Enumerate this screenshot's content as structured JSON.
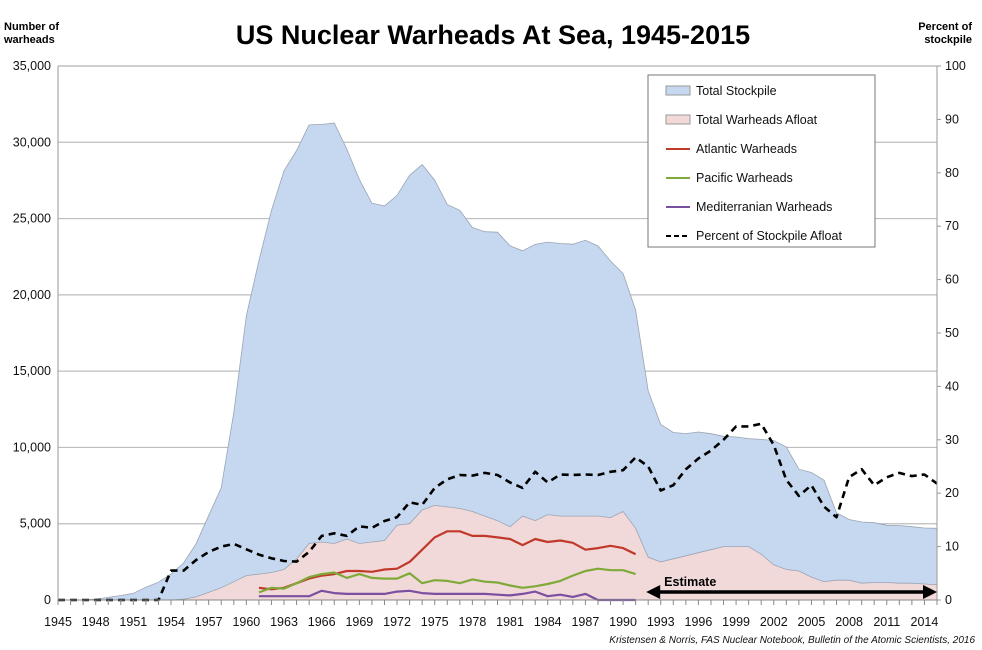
{
  "chart_data": {
    "type": "area",
    "title": "US Nuclear Warheads At Sea, 1945-2015",
    "ylabel_left": "Number of warheads",
    "ylabel_right": "Percent of stockpile",
    "ylim_left": [
      0,
      35000
    ],
    "ylim_right": [
      0,
      100
    ],
    "xlim": [
      1945,
      2015
    ],
    "yticks_left": [
      "0",
      "5,000",
      "10,000",
      "15,000",
      "20,000",
      "25,000",
      "30,000",
      "35,000"
    ],
    "yticks_right": [
      "0",
      "10",
      "20",
      "30",
      "40",
      "50",
      "60",
      "70",
      "80",
      "90",
      "100"
    ],
    "xticks": [
      "1945",
      "1948",
      "1951",
      "1954",
      "1957",
      "1960",
      "1963",
      "1966",
      "1969",
      "1972",
      "1975",
      "1978",
      "1981",
      "1984",
      "1987",
      "1990",
      "1993",
      "1996",
      "1999",
      "2002",
      "2005",
      "2008",
      "2011",
      "2014"
    ],
    "grid": "horizontal",
    "legend_position": "top-right",
    "annotation": "Estimate",
    "annotation_range": [
      1992,
      2015
    ],
    "source": "Kristensen & Norris, FAS Nuclear Notebook, Bulletin of the Atomic Scientists, 2016",
    "x_start": 1945,
    "series": [
      {
        "name": "Total Stockpile",
        "kind": "area",
        "axis": "left",
        "color": "#c5d8ef",
        "start": 1945,
        "values": [
          2,
          9,
          13,
          56,
          169,
          298,
          438,
          841,
          1169,
          1703,
          2422,
          3692,
          5543,
          7345,
          12298,
          18638,
          22229,
          25540,
          28133,
          29463,
          31139,
          31175,
          31255,
          29561,
          27552,
          26008,
          25830,
          26516,
          27835,
          28537,
          27519,
          25914,
          25542,
          24418,
          24138,
          24104,
          23208,
          22886,
          23305,
          23459,
          23368,
          23317,
          23575,
          23205,
          22217,
          21392,
          19008,
          13708,
          11511,
          10979,
          10904,
          11011,
          10903,
          10732,
          10685,
          10577,
          10526,
          10457,
          10027,
          8570,
          8360,
          7853,
          5709,
          5273,
          5113,
          5066,
          4897,
          4881,
          4804,
          4717,
          4700
        ]
      },
      {
        "name": "Total Warheads Afloat",
        "kind": "area",
        "axis": "left",
        "color": "#f2d9d9",
        "start": 1945,
        "values": [
          0,
          0,
          0,
          0,
          0,
          0,
          0,
          0,
          0,
          0,
          50,
          200,
          500,
          800,
          1200,
          1600,
          1700,
          1800,
          2000,
          2700,
          3700,
          3800,
          3700,
          4000,
          3700,
          3800,
          3900,
          4900,
          5000,
          5900,
          6200,
          6100,
          6000,
          5800,
          5500,
          5200,
          4800,
          5500,
          5200,
          5600,
          5500,
          5500,
          5500,
          5500,
          5400,
          5800,
          4700,
          2800,
          2500,
          2700,
          2900,
          3100,
          3300,
          3500,
          3500,
          3500,
          3000,
          2300,
          2000,
          1900,
          1500,
          1200,
          1300,
          1300,
          1100,
          1150,
          1150,
          1100,
          1100,
          1050,
          1000
        ]
      },
      {
        "name": "Atlantic Warheads",
        "kind": "line",
        "axis": "left",
        "color": "#c0392b",
        "start": 1961,
        "values": [
          800,
          700,
          800,
          1100,
          1400,
          1600,
          1700,
          1900,
          1900,
          1850,
          2000,
          2050,
          2500,
          3300,
          4100,
          4500,
          4500,
          4200,
          4200,
          4100,
          4000,
          3600,
          4000,
          3800,
          3900,
          3750,
          3300,
          3400,
          3550,
          3400,
          3000
        ]
      },
      {
        "name": "Pacific Warheads",
        "kind": "line",
        "axis": "left",
        "color": "#7faa3a",
        "start": 1961,
        "values": [
          500,
          800,
          750,
          1100,
          1500,
          1700,
          1800,
          1450,
          1700,
          1450,
          1400,
          1400,
          1750,
          1100,
          1300,
          1250,
          1100,
          1350,
          1200,
          1150,
          950,
          800,
          900,
          1050,
          1250,
          1600,
          1900,
          2050,
          1950,
          1950,
          1700
        ]
      },
      {
        "name": "Mediterranian Warheads",
        "kind": "line",
        "axis": "left",
        "color": "#7a4fa0",
        "start": 1961,
        "values": [
          250,
          250,
          250,
          250,
          250,
          600,
          450,
          400,
          400,
          400,
          400,
          550,
          600,
          450,
          400,
          400,
          400,
          400,
          400,
          350,
          300,
          400,
          550,
          250,
          350,
          200,
          400,
          0,
          0,
          0,
          0
        ]
      },
      {
        "name": "Percent of Stockpile Afloat",
        "kind": "dashed",
        "axis": "right",
        "color": "#000000",
        "start": 1945,
        "values": [
          0,
          0,
          0,
          0,
          0,
          0,
          0,
          0,
          0,
          5.5,
          5.5,
          7.5,
          9,
          10,
          10.5,
          9.5,
          8.5,
          7.8,
          7.3,
          7.2,
          9,
          12,
          12.5,
          12,
          13.8,
          13.5,
          14.8,
          15.5,
          18.3,
          17.8,
          21,
          22.6,
          23.4,
          23.3,
          23.8,
          23.4,
          22,
          21,
          24,
          22,
          23.5,
          23.4,
          23.5,
          23.4,
          24,
          24.3,
          26.7,
          25,
          20.5,
          21.5,
          24.5,
          26.5,
          28,
          30,
          32.5,
          32.5,
          33,
          29,
          22.5,
          19.5,
          21.5,
          17.5,
          15.5,
          23,
          24.5,
          21.5,
          23,
          23.8,
          23.2,
          23.5,
          21.8
        ]
      }
    ]
  }
}
